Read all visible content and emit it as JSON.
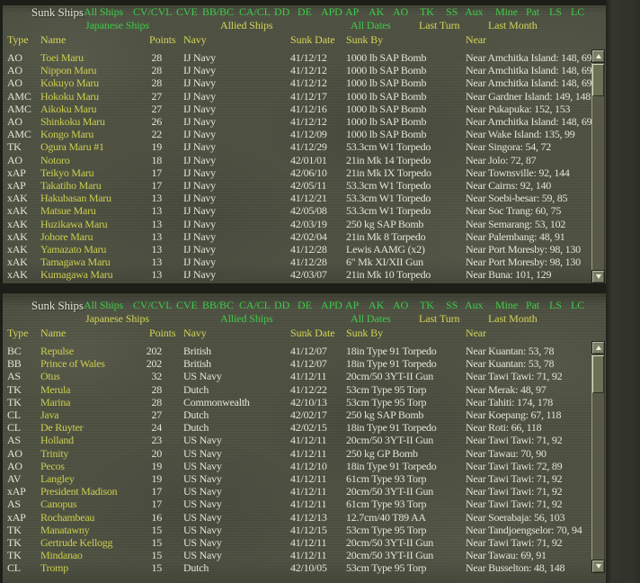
{
  "colors": {
    "active_filter": "#3fcb4a",
    "inactive_filter": "#d3d456",
    "body_text": "#e4e5d6",
    "name_text": "#cbcf4e",
    "panel_bg": "#4d5041"
  },
  "panels": [
    {
      "title": "Sunk Ships",
      "type_filters": [
        "All Ships",
        "CV/CVL",
        "CVE",
        "BB/BC",
        "CA/CL",
        "DD",
        "DE",
        "APD",
        "AP",
        "AK",
        "AO",
        "TK",
        "SS",
        "Aux",
        "Mine",
        "Pat",
        "LS",
        "LC"
      ],
      "side_filters": [
        {
          "label": "Japanese Ships",
          "active": true
        },
        {
          "label": "Allied Ships",
          "active": false
        }
      ],
      "date_filters": [
        {
          "label": "All Dates",
          "active": true
        },
        {
          "label": "Last Turn",
          "active": false
        },
        {
          "label": "Last Month",
          "active": false
        }
      ],
      "columns": [
        "Type",
        "Name",
        "Points",
        "Navy",
        "Sunk Date",
        "Sunk By",
        "Near"
      ],
      "rows": [
        [
          "AO",
          "Toei Maru",
          "28",
          "IJ Navy",
          "41/12/12",
          "1000 lb SAP Bomb",
          "Near Amchitka Island: 148, 69"
        ],
        [
          "AO",
          "Nippon Maru",
          "28",
          "IJ Navy",
          "41/12/12",
          "1000 lb SAP Bomb",
          "Near Amchitka Island: 148, 69"
        ],
        [
          "AO",
          "Kokuyo Maru",
          "28",
          "IJ Navy",
          "41/12/12",
          "1000 lb SAP Bomb",
          "Near Amchitka Island: 148, 69"
        ],
        [
          "AMC",
          "Hokoku Maru",
          "27",
          "IJ Navy",
          "41/12/17",
          "1000 lb SAP Bomb",
          "Near Gardner Island: 149, 148"
        ],
        [
          "AMC",
          "Aikoku Maru",
          "27",
          "IJ Navy",
          "41/12/16",
          "1000 lb SAP Bomb",
          "Near Pukapuka: 152, 153"
        ],
        [
          "AO",
          "Shinkoku Maru",
          "26",
          "IJ Navy",
          "41/12/12",
          "1000 lb SAP Bomb",
          "Near Amchitka Island: 148, 69"
        ],
        [
          "AMC",
          "Kongo Maru",
          "22",
          "IJ Navy",
          "41/12/09",
          "1000 lb SAP Bomb",
          "Near Wake Island: 135, 99"
        ],
        [
          "TK",
          "Ogura Maru #1",
          "19",
          "IJ Navy",
          "41/12/29",
          "53.3cm W1 Torpedo",
          "Near Singora: 54, 72"
        ],
        [
          "AO",
          "Notoro",
          "18",
          "IJ Navy",
          "42/01/01",
          "21in Mk 14 Torpedo",
          "Near Jolo: 72, 87"
        ],
        [
          "xAP",
          "Teikyo Maru",
          "17",
          "IJ Navy",
          "42/06/10",
          "21in Mk IX Torpedo",
          "Near Townsville: 92, 144"
        ],
        [
          "xAP",
          "Takatiho Maru",
          "17",
          "IJ Navy",
          "42/05/11",
          "53.3cm W1 Torpedo",
          "Near Cairns: 92, 140"
        ],
        [
          "xAK",
          "Hakubasan Maru",
          "13",
          "IJ Navy",
          "41/12/21",
          "53.3cm W1 Torpedo",
          "Near Soebi-besar: 59, 85"
        ],
        [
          "xAK",
          "Matsue Maru",
          "13",
          "IJ Navy",
          "42/05/08",
          "53.3cm W1 Torpedo",
          "Near Soc Trang: 60, 75"
        ],
        [
          "xAK",
          "Huzikawa Maru",
          "13",
          "IJ Navy",
          "42/03/19",
          "250 kg SAP Bomb",
          "Near Semarang: 53, 102"
        ],
        [
          "xAK",
          "Johore Maru",
          "13",
          "IJ Navy",
          "42/02/04",
          "21in Mk 8 Torpedo",
          "Near Palembang: 48, 91"
        ],
        [
          "xAK",
          "Yamazato Maru",
          "13",
          "IJ Navy",
          "41/12/28",
          "Lewis AAMG (x2)",
          "Near Port Moresby: 98, 130"
        ],
        [
          "xAK",
          "Tamagawa Maru",
          "13",
          "IJ Navy",
          "41/12/28",
          "6\" Mk XI/XII Gun",
          "Near Port Moresby: 98, 130"
        ],
        [
          "xAK",
          "Kumagawa Maru",
          "13",
          "IJ Navy",
          "42/03/07",
          "21in Mk 10 Torpedo",
          "Near Buna: 101, 129"
        ]
      ]
    },
    {
      "title": "Sunk Ships",
      "type_filters": [
        "All Ships",
        "CV/CVL",
        "CVE",
        "BB/BC",
        "CA/CL",
        "DD",
        "DE",
        "APD",
        "AP",
        "AK",
        "AO",
        "TK",
        "SS",
        "Aux",
        "Mine",
        "Pat",
        "LS",
        "LC"
      ],
      "side_filters": [
        {
          "label": "Japanese Ships",
          "active": false
        },
        {
          "label": "Allied Ships",
          "active": true
        }
      ],
      "date_filters": [
        {
          "label": "All Dates",
          "active": true
        },
        {
          "label": "Last Turn",
          "active": false
        },
        {
          "label": "Last Month",
          "active": false
        }
      ],
      "columns": [
        "Type",
        "Name",
        "Points",
        "Navy",
        "Sunk Date",
        "Sunk By",
        "Near"
      ],
      "rows": [
        [
          "BC",
          "Repulse",
          "202",
          "British",
          "41/12/07",
          "18in Type 91 Torpedo",
          "Near Kuantan: 53, 78"
        ],
        [
          "BB",
          "Prince of Wales",
          "202",
          "British",
          "41/12/07",
          "18in Type 91 Torpedo",
          "Near Kuantan: 53, 78"
        ],
        [
          "AS",
          "Otus",
          "32",
          "US Navy",
          "41/12/11",
          "20cm/50 3YT-II Gun",
          "Near Tawi Tawi: 71, 92"
        ],
        [
          "TK",
          "Merula",
          "28",
          "Dutch",
          "41/12/22",
          "53cm Type 95 Torp",
          "Near Merak: 48, 97"
        ],
        [
          "TK",
          "Marina",
          "28",
          "Commonwealth",
          "42/10/13",
          "53cm Type 95 Torp",
          "Near Tahiti: 174, 178"
        ],
        [
          "CL",
          "Java",
          "27",
          "Dutch",
          "42/02/17",
          "250 kg SAP Bomb",
          "Near Koepang: 67, 118"
        ],
        [
          "CL",
          "De Ruyter",
          "24",
          "Dutch",
          "42/02/15",
          "18in Type 91 Torpedo",
          "Near Roti: 66, 118"
        ],
        [
          "AS",
          "Holland",
          "23",
          "US Navy",
          "41/12/11",
          "20cm/50 3YT-II Gun",
          "Near Tawi Tawi: 71, 92"
        ],
        [
          "AO",
          "Trinity",
          "20",
          "US Navy",
          "41/12/11",
          "250 kg GP Bomb",
          "Near Tawau: 70, 90"
        ],
        [
          "AO",
          "Pecos",
          "19",
          "US Navy",
          "41/12/10",
          "18in Type 91 Torpedo",
          "Near Tawi Tawi: 72, 89"
        ],
        [
          "AV",
          "Langley",
          "19",
          "US Navy",
          "41/12/11",
          "61cm Type 93 Torp",
          "Near Tawi Tawi: 71, 92"
        ],
        [
          "xAP",
          "President Madison",
          "17",
          "US Navy",
          "41/12/11",
          "20cm/50 3YT-II Gun",
          "Near Tawi Tawi: 71, 92"
        ],
        [
          "AS",
          "Canopus",
          "17",
          "US Navy",
          "41/12/11",
          "61cm Type 93 Torp",
          "Near Tawi Tawi: 71, 92"
        ],
        [
          "xAP",
          "Rochambeau",
          "16",
          "US Navy",
          "41/12/13",
          "12.7cm/40 T89 AA",
          "Near Soerabaja: 56, 103"
        ],
        [
          "TK",
          "Manatawny",
          "15",
          "US Navy",
          "41/12/15",
          "53cm Type 95 Torp",
          "Near Tandjoengselor: 70, 94"
        ],
        [
          "TK",
          "Gertrude Kellogg",
          "15",
          "US Navy",
          "41/12/11",
          "20cm/50 3YT-II Gun",
          "Near Tawi Tawi: 71, 92"
        ],
        [
          "TK",
          "Mindanao",
          "15",
          "US Navy",
          "41/12/11",
          "20cm/50 3YT-II Gun",
          "Near Tawau: 69, 91"
        ],
        [
          "CL",
          "Tromp",
          "15",
          "Dutch",
          "42/10/05",
          "53cm Type 95 Torp",
          "Near Busselton: 48, 148"
        ]
      ]
    }
  ]
}
